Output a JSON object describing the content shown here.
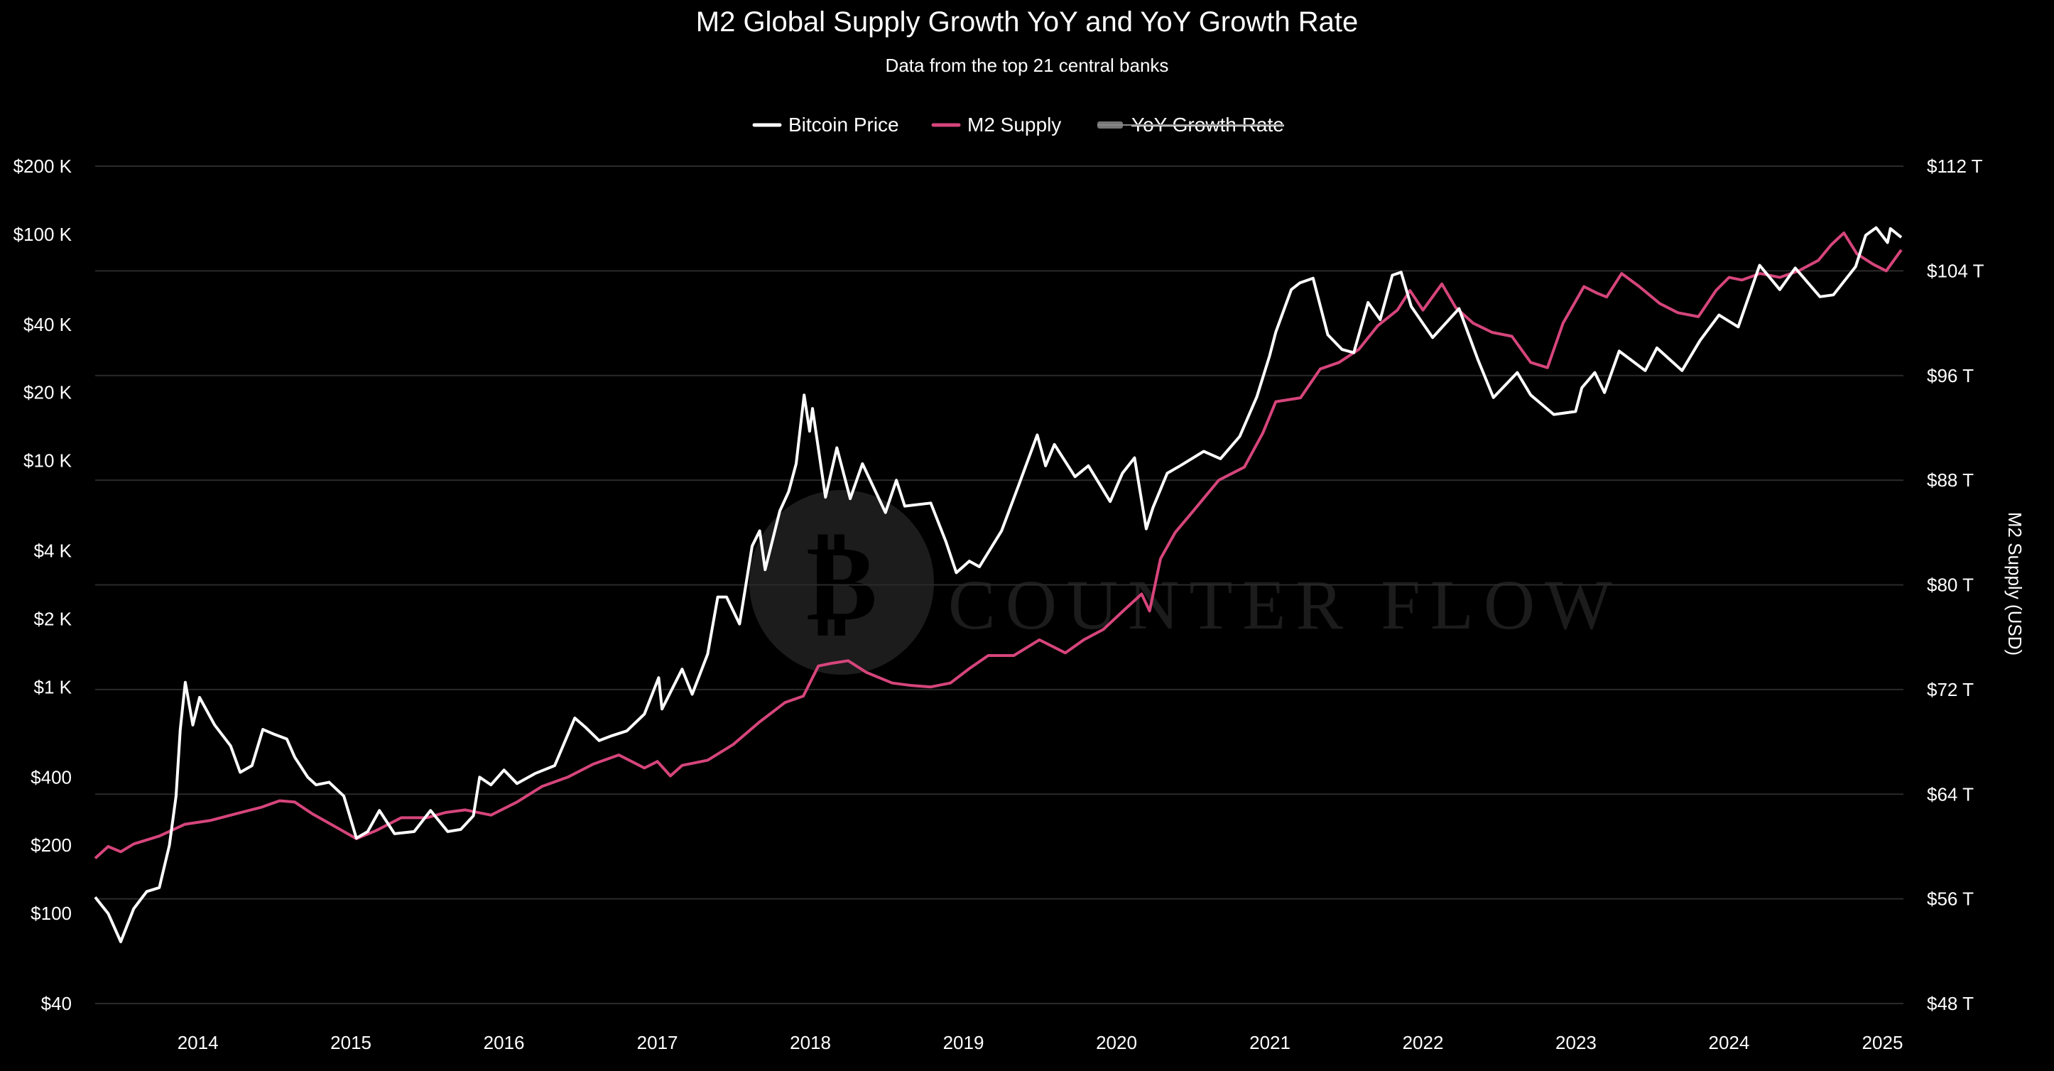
{
  "chart_data": {
    "type": "line",
    "title": "M2 Global Supply Growth YoY and YoY Growth Rate",
    "subtitle": "Data from the top 21 central banks",
    "watermark": "COUNTER FLOW",
    "legend_position": "top-center",
    "legend": [
      {
        "label": "Bitcoin Price",
        "color": "#ffffff",
        "disabled": false
      },
      {
        "label": "M2 Supply",
        "color": "#d6457b",
        "disabled": false
      },
      {
        "label": "YoY Growth Rate",
        "color": "#777777",
        "disabled": true
      }
    ],
    "x_axis": {
      "type": "time",
      "range": [
        "2013-05-01",
        "2025-02-20"
      ],
      "ticks": [
        {
          "value": "2014-01-01",
          "label": "2014"
        },
        {
          "value": "2015-01-01",
          "label": "2015"
        },
        {
          "value": "2016-01-01",
          "label": "2016"
        },
        {
          "value": "2017-01-01",
          "label": "2017"
        },
        {
          "value": "2018-01-01",
          "label": "2018"
        },
        {
          "value": "2019-01-01",
          "label": "2019"
        },
        {
          "value": "2020-01-01",
          "label": "2020"
        },
        {
          "value": "2021-01-01",
          "label": "2021"
        },
        {
          "value": "2022-01-01",
          "label": "2022"
        },
        {
          "value": "2023-01-01",
          "label": "2023"
        },
        {
          "value": "2024-01-01",
          "label": "2024"
        },
        {
          "value": "2025-01-01",
          "label": "2025"
        }
      ]
    },
    "y_left": {
      "type": "log",
      "range": [
        40,
        200000
      ],
      "ticks": [
        {
          "value": 200000,
          "label": "$200 K"
        },
        {
          "value": 100000,
          "label": "$100 K"
        },
        {
          "value": 40000,
          "label": "$40 K"
        },
        {
          "value": 20000,
          "label": "$20 K"
        },
        {
          "value": 10000,
          "label": "$10 K"
        },
        {
          "value": 4000,
          "label": "$4 K"
        },
        {
          "value": 2000,
          "label": "$2 K"
        },
        {
          "value": 1000,
          "label": "$1 K"
        },
        {
          "value": 400,
          "label": "$400"
        },
        {
          "value": 200,
          "label": "$200"
        },
        {
          "value": 100,
          "label": "$100"
        },
        {
          "value": 40,
          "label": "$40"
        }
      ]
    },
    "y_right": {
      "type": "linear",
      "label": "M2 Supply (USD)",
      "range": [
        48,
        112
      ],
      "ticks": [
        {
          "value": 112,
          "label": "$112 T"
        },
        {
          "value": 104,
          "label": "$104 T"
        },
        {
          "value": 96,
          "label": "$96 T"
        },
        {
          "value": 88,
          "label": "$88 T"
        },
        {
          "value": 80,
          "label": "$80 T"
        },
        {
          "value": 72,
          "label": "$72 T"
        },
        {
          "value": 64,
          "label": "$64 T"
        },
        {
          "value": 56,
          "label": "$56 T"
        },
        {
          "value": 48,
          "label": "$48 T"
        }
      ]
    },
    "grid": true,
    "series": [
      {
        "name": "Bitcoin Price",
        "axis": "left",
        "color": "#ffffff",
        "points": [
          [
            "2013-05-01",
            118
          ],
          [
            "2013-06-01",
            100
          ],
          [
            "2013-07-01",
            75
          ],
          [
            "2013-08-01",
            105
          ],
          [
            "2013-09-01",
            125
          ],
          [
            "2013-10-01",
            130
          ],
          [
            "2013-10-25",
            200
          ],
          [
            "2013-11-10",
            330
          ],
          [
            "2013-11-20",
            650
          ],
          [
            "2013-12-02",
            1050
          ],
          [
            "2013-12-20",
            680
          ],
          [
            "2014-01-05",
            900
          ],
          [
            "2014-02-10",
            680
          ],
          [
            "2014-03-20",
            550
          ],
          [
            "2014-04-12",
            420
          ],
          [
            "2014-05-10",
            450
          ],
          [
            "2014-06-05",
            650
          ],
          [
            "2014-07-01",
            620
          ],
          [
            "2014-08-01",
            590
          ],
          [
            "2014-08-20",
            490
          ],
          [
            "2014-09-20",
            400
          ],
          [
            "2014-10-10",
            370
          ],
          [
            "2014-11-10",
            380
          ],
          [
            "2014-12-15",
            330
          ],
          [
            "2015-01-14",
            215
          ],
          [
            "2015-02-10",
            230
          ],
          [
            "2015-03-10",
            285
          ],
          [
            "2015-04-15",
            225
          ],
          [
            "2015-06-01",
            230
          ],
          [
            "2015-07-10",
            285
          ],
          [
            "2015-08-20",
            230
          ],
          [
            "2015-09-20",
            235
          ],
          [
            "2015-10-20",
            270
          ],
          [
            "2015-11-04",
            400
          ],
          [
            "2015-12-01",
            370
          ],
          [
            "2016-01-01",
            430
          ],
          [
            "2016-02-01",
            375
          ],
          [
            "2016-03-15",
            415
          ],
          [
            "2016-05-01",
            450
          ],
          [
            "2016-06-18",
            730
          ],
          [
            "2016-07-15",
            660
          ],
          [
            "2016-08-15",
            580
          ],
          [
            "2016-09-15",
            610
          ],
          [
            "2016-10-20",
            640
          ],
          [
            "2016-12-01",
            760
          ],
          [
            "2017-01-04",
            1100
          ],
          [
            "2017-01-12",
            800
          ],
          [
            "2017-03-01",
            1200
          ],
          [
            "2017-03-25",
            930
          ],
          [
            "2017-05-01",
            1400
          ],
          [
            "2017-05-25",
            2500
          ],
          [
            "2017-06-15",
            2500
          ],
          [
            "2017-07-16",
            1900
          ],
          [
            "2017-08-15",
            4200
          ],
          [
            "2017-09-02",
            4900
          ],
          [
            "2017-09-15",
            3300
          ],
          [
            "2017-10-20",
            6000
          ],
          [
            "2017-11-10",
            7300
          ],
          [
            "2017-11-28",
            9700
          ],
          [
            "2017-12-17",
            19500
          ],
          [
            "2017-12-30",
            13500
          ],
          [
            "2018-01-06",
            17000
          ],
          [
            "2018-02-06",
            6900
          ],
          [
            "2018-03-05",
            11400
          ],
          [
            "2018-04-06",
            6800
          ],
          [
            "2018-05-05",
            9700
          ],
          [
            "2018-06-29",
            5900
          ],
          [
            "2018-07-25",
            8200
          ],
          [
            "2018-08-14",
            6300
          ],
          [
            "2018-10-15",
            6500
          ],
          [
            "2018-11-20",
            4400
          ],
          [
            "2018-12-15",
            3200
          ],
          [
            "2019-01-15",
            3600
          ],
          [
            "2019-02-08",
            3400
          ],
          [
            "2019-04-02",
            4900
          ],
          [
            "2019-05-14",
            7900
          ],
          [
            "2019-06-26",
            13000
          ],
          [
            "2019-07-16",
            9500
          ],
          [
            "2019-08-06",
            11800
          ],
          [
            "2019-09-24",
            8500
          ],
          [
            "2019-10-26",
            9500
          ],
          [
            "2019-12-17",
            6600
          ],
          [
            "2020-01-15",
            8800
          ],
          [
            "2020-02-13",
            10300
          ],
          [
            "2020-03-12",
            5000
          ],
          [
            "2020-03-28",
            6200
          ],
          [
            "2020-05-01",
            8800
          ],
          [
            "2020-06-01",
            9500
          ],
          [
            "2020-07-27",
            11000
          ],
          [
            "2020-09-05",
            10200
          ],
          [
            "2020-10-21",
            12800
          ],
          [
            "2020-12-01",
            19200
          ],
          [
            "2020-12-31",
            29000
          ],
          [
            "2021-01-15",
            37000
          ],
          [
            "2021-02-21",
            57000
          ],
          [
            "2021-03-13",
            61000
          ],
          [
            "2021-04-14",
            64000
          ],
          [
            "2021-05-19",
            36000
          ],
          [
            "2021-06-22",
            31000
          ],
          [
            "2021-07-20",
            30000
          ],
          [
            "2021-08-23",
            50000
          ],
          [
            "2021-09-21",
            42000
          ],
          [
            "2021-10-20",
            66000
          ],
          [
            "2021-11-10",
            68000
          ],
          [
            "2021-12-04",
            48000
          ],
          [
            "2022-01-24",
            35000
          ],
          [
            "2022-03-28",
            47000
          ],
          [
            "2022-05-12",
            28000
          ],
          [
            "2022-06-18",
            19000
          ],
          [
            "2022-08-14",
            24500
          ],
          [
            "2022-09-15",
            19500
          ],
          [
            "2022-11-09",
            16000
          ],
          [
            "2022-12-31",
            16500
          ],
          [
            "2023-01-15",
            21000
          ],
          [
            "2023-02-15",
            24500
          ],
          [
            "2023-03-10",
            20000
          ],
          [
            "2023-04-14",
            30500
          ],
          [
            "2023-06-15",
            25000
          ],
          [
            "2023-07-13",
            31500
          ],
          [
            "2023-09-11",
            25000
          ],
          [
            "2023-10-24",
            34000
          ],
          [
            "2023-12-08",
            44000
          ],
          [
            "2024-01-23",
            39000
          ],
          [
            "2024-03-14",
            73000
          ],
          [
            "2024-05-01",
            57000
          ],
          [
            "2024-06-07",
            71000
          ],
          [
            "2024-08-05",
            53000
          ],
          [
            "2024-09-06",
            54000
          ],
          [
            "2024-10-29",
            72000
          ],
          [
            "2024-11-22",
            99000
          ],
          [
            "2024-12-17",
            107000
          ],
          [
            "2025-01-13",
            92000
          ],
          [
            "2025-01-20",
            106000
          ],
          [
            "2025-02-15",
            97000
          ]
        ]
      },
      {
        "name": "M2 Supply",
        "axis": "right",
        "color": "#d6457b",
        "points": [
          [
            "2013-05-01",
            59.1
          ],
          [
            "2013-06-01",
            60.0
          ],
          [
            "2013-07-01",
            59.6
          ],
          [
            "2013-08-01",
            60.2
          ],
          [
            "2013-10-01",
            60.8
          ],
          [
            "2013-12-01",
            61.7
          ],
          [
            "2014-02-01",
            62.0
          ],
          [
            "2014-04-01",
            62.5
          ],
          [
            "2014-06-01",
            63.0
          ],
          [
            "2014-07-15",
            63.5
          ],
          [
            "2014-08-20",
            63.4
          ],
          [
            "2014-10-01",
            62.5
          ],
          [
            "2014-12-01",
            61.4
          ],
          [
            "2015-01-14",
            60.6
          ],
          [
            "2015-03-01",
            61.2
          ],
          [
            "2015-05-01",
            62.2
          ],
          [
            "2015-07-01",
            62.2
          ],
          [
            "2015-08-15",
            62.6
          ],
          [
            "2015-10-01",
            62.8
          ],
          [
            "2015-12-01",
            62.4
          ],
          [
            "2016-02-01",
            63.4
          ],
          [
            "2016-04-01",
            64.6
          ],
          [
            "2016-06-01",
            65.3
          ],
          [
            "2016-08-01",
            66.3
          ],
          [
            "2016-10-01",
            67.0
          ],
          [
            "2016-12-01",
            66.0
          ],
          [
            "2017-01-01",
            66.5
          ],
          [
            "2017-02-01",
            65.4
          ],
          [
            "2017-03-01",
            66.2
          ],
          [
            "2017-05-01",
            66.6
          ],
          [
            "2017-07-01",
            67.8
          ],
          [
            "2017-09-01",
            69.5
          ],
          [
            "2017-11-01",
            71.0
          ],
          [
            "2017-12-15",
            71.5
          ],
          [
            "2018-01-20",
            73.8
          ],
          [
            "2018-02-20",
            74.0
          ],
          [
            "2018-04-01",
            74.2
          ],
          [
            "2018-05-15",
            73.3
          ],
          [
            "2018-07-15",
            72.5
          ],
          [
            "2018-09-01",
            72.3
          ],
          [
            "2018-10-15",
            72.2
          ],
          [
            "2018-12-01",
            72.5
          ],
          [
            "2019-01-15",
            73.6
          ],
          [
            "2019-03-01",
            74.6
          ],
          [
            "2019-05-01",
            74.6
          ],
          [
            "2019-07-01",
            75.8
          ],
          [
            "2019-09-01",
            74.8
          ],
          [
            "2019-10-15",
            75.8
          ],
          [
            "2019-12-01",
            76.6
          ],
          [
            "2020-01-20",
            78.1
          ],
          [
            "2020-03-01",
            79.3
          ],
          [
            "2020-03-20",
            78.0
          ],
          [
            "2020-04-15",
            82.0
          ],
          [
            "2020-05-20",
            84.0
          ],
          [
            "2020-07-01",
            85.6
          ],
          [
            "2020-09-01",
            88.0
          ],
          [
            "2020-11-01",
            89.0
          ],
          [
            "2020-12-15",
            91.6
          ],
          [
            "2021-01-15",
            94.0
          ],
          [
            "2021-03-15",
            94.3
          ],
          [
            "2021-05-01",
            96.5
          ],
          [
            "2021-06-15",
            97.0
          ],
          [
            "2021-08-01",
            98.0
          ],
          [
            "2021-09-15",
            99.8
          ],
          [
            "2021-11-01",
            101.0
          ],
          [
            "2021-12-01",
            102.5
          ],
          [
            "2022-01-01",
            101.0
          ],
          [
            "2022-02-15",
            103.0
          ],
          [
            "2022-03-20",
            101.2
          ],
          [
            "2022-05-01",
            100.0
          ],
          [
            "2022-06-15",
            99.3
          ],
          [
            "2022-08-01",
            99.0
          ],
          [
            "2022-09-15",
            97.0
          ],
          [
            "2022-10-25",
            96.6
          ],
          [
            "2022-12-01",
            100.0
          ],
          [
            "2023-01-20",
            102.8
          ],
          [
            "2023-02-20",
            102.3
          ],
          [
            "2023-03-15",
            102.0
          ],
          [
            "2023-04-20",
            103.8
          ],
          [
            "2023-06-01",
            102.8
          ],
          [
            "2023-07-20",
            101.5
          ],
          [
            "2023-09-01",
            100.8
          ],
          [
            "2023-10-20",
            100.5
          ],
          [
            "2023-12-01",
            102.5
          ],
          [
            "2024-01-01",
            103.5
          ],
          [
            "2024-02-01",
            103.3
          ],
          [
            "2024-03-15",
            103.8
          ],
          [
            "2024-05-01",
            103.5
          ],
          [
            "2024-06-15",
            104.0
          ],
          [
            "2024-08-01",
            104.8
          ],
          [
            "2024-09-01",
            106.0
          ],
          [
            "2024-10-01",
            106.9
          ],
          [
            "2024-11-01",
            105.3
          ],
          [
            "2024-12-10",
            104.5
          ],
          [
            "2025-01-10",
            104.0
          ],
          [
            "2025-02-15",
            105.6
          ]
        ]
      }
    ]
  }
}
